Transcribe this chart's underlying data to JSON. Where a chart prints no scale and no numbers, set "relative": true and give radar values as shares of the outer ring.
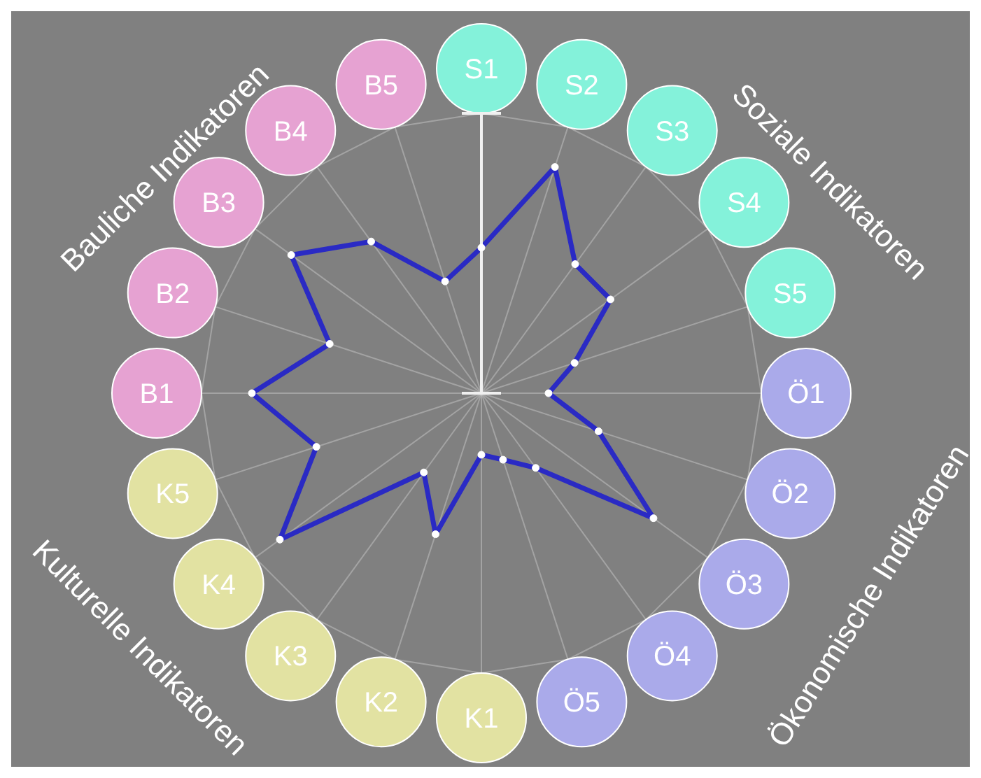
{
  "chart_data": {
    "type": "radar",
    "relative": true,
    "grid": true,
    "marker": "circle",
    "categories": [
      "S1",
      "S2",
      "S3",
      "S4",
      "S5",
      "Ö1",
      "Ö2",
      "Ö3",
      "Ö4",
      "Ö5",
      "K1",
      "K2",
      "K3",
      "K4",
      "K5",
      "B1",
      "B2",
      "B3",
      "B4",
      "B5"
    ],
    "colors": [
      "#84f2da",
      "#84f2da",
      "#84f2da",
      "#84f2da",
      "#84f2da",
      "#aaaaea",
      "#aaaaea",
      "#aaaaea",
      "#aaaaea",
      "#aaaaea",
      "#e2e2a2",
      "#e2e2a2",
      "#e2e2a2",
      "#e2e2a2",
      "#e2e2a2",
      "#e6a2d2",
      "#e6a2d2",
      "#e6a2d2",
      "#e6a2d2",
      "#e6a2d2"
    ],
    "series": [
      {
        "color": "#2a2ac4",
        "values": [
          0.52,
          0.85,
          0.57,
          0.57,
          0.35,
          0.24,
          0.44,
          0.76,
          0.33,
          0.25,
          0.22,
          0.53,
          0.35,
          0.89,
          0.62,
          0.82,
          0.57,
          0.84,
          0.67,
          0.42
        ]
      }
    ],
    "annotations": [
      "Soziale Indikatoren",
      "Ökonomische Indikatoren",
      "Kulturelle Indikatoren",
      "Bauliche Indikatoren"
    ]
  }
}
